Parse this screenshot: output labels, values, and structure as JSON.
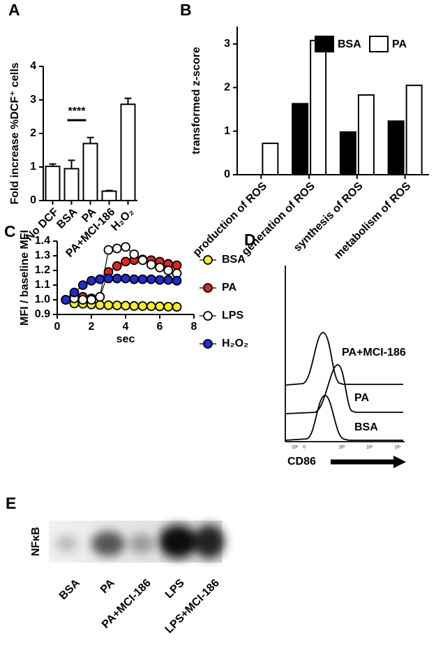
{
  "panel_labels": [
    "A",
    "B",
    "C",
    "D",
    "E"
  ],
  "chart_data": [
    {
      "type": "bar",
      "categories": [
        "No DCF",
        "BSA",
        "PA",
        "PA+MCI-186",
        "H₂O₂"
      ],
      "values": [
        1.02,
        0.95,
        1.7,
        0.28,
        2.87
      ],
      "errors": [
        0.07,
        0.25,
        0.18,
        0.02,
        0.18
      ],
      "color": "#ffffff",
      "ylabel": "Fold increase  %DCF⁺ cells",
      "ylim": [
        0,
        4
      ],
      "yticks": [
        0,
        1,
        2,
        3,
        4
      ],
      "annotation": "****"
    },
    {
      "type": "grouped_bar",
      "categories": [
        "production of ROS",
        "generation of ROS",
        "synthesis of ROS",
        "metabolism of ROS"
      ],
      "series": [
        {
          "name": "BSA",
          "color": "#000000",
          "values": [
            0,
            1.63,
            0.98,
            1.23
          ]
        },
        {
          "name": "PA",
          "color": "#ffffff",
          "values": [
            0.72,
            3.08,
            1.83,
            2.05
          ]
        }
      ],
      "ylabel": "transformed z-score",
      "ylim": [
        0,
        3.4
      ],
      "yticks": [
        0,
        1,
        2,
        3
      ],
      "legend": "top-right"
    },
    {
      "type": "line",
      "x": [
        0.5,
        1,
        1.5,
        2,
        2.5,
        3,
        3.5,
        4,
        4.5,
        5,
        5.5,
        6,
        6.5,
        7
      ],
      "series": [
        {
          "name": "BSA",
          "color": "#f5f019",
          "values": [
            1.0,
            0.975,
            0.973,
            0.968,
            0.965,
            0.963,
            0.962,
            0.96,
            0.958,
            0.957,
            0.956,
            0.955,
            0.953,
            0.952
          ]
        },
        {
          "name": "PA",
          "color": "#e8211e",
          "values": [
            1.0,
            1.03,
            1.02,
            1.01,
            1.02,
            1.19,
            1.23,
            1.26,
            1.27,
            1.275,
            1.27,
            1.26,
            1.245,
            1.235
          ]
        },
        {
          "name": "LPS",
          "color": "#ffffff",
          "values": [
            1.0,
            1.01,
            1.0,
            1.0,
            1.02,
            1.34,
            1.35,
            1.36,
            1.31,
            1.27,
            1.24,
            1.22,
            1.2,
            1.18
          ]
        },
        {
          "name": "H₂O₂",
          "color": "#1f2bd6",
          "values": [
            1.0,
            1.05,
            1.1,
            1.13,
            1.14,
            1.145,
            1.145,
            1.145,
            1.14,
            1.14,
            1.14,
            1.135,
            1.135,
            1.13
          ]
        }
      ],
      "xlabel": "sec",
      "ylabel": "MFI / baseline MFI",
      "xlim": [
        0,
        8
      ],
      "xticks": [
        0,
        2,
        4,
        6,
        8
      ],
      "ylim": [
        0.9,
        1.4
      ],
      "yticks": [
        0.9,
        {
          "value": 1.0,
          "label": "1.0"
        },
        1.1,
        1.2,
        1.3,
        1.4
      ],
      "legend": "right"
    }
  ],
  "flow_panel": {
    "labels": [
      "PA+MCI-186",
      "PA",
      "BSA"
    ],
    "xlabel": "CD86",
    "xticks": [
      "-10³",
      "0",
      "10³",
      "10⁴",
      "10⁵"
    ]
  },
  "blot_panel": {
    "ylabel": "NFκB",
    "lanes": [
      "BSA",
      "PA",
      "PA+MCI-186",
      "LPS",
      "LPS+MCI-186"
    ]
  }
}
